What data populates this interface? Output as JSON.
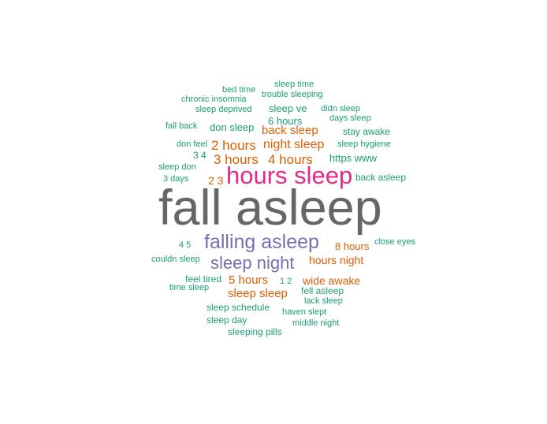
{
  "colors": {
    "teal": "#1b9e77",
    "orange": "#d95f02",
    "purple": "#7570b3",
    "pink": "#e7298a",
    "gray": "#666666"
  },
  "words": [
    {
      "text": "fall asleep",
      "color": "gray"
    },
    {
      "text": "hours sleep",
      "color": "pink"
    },
    {
      "text": "falling asleep",
      "color": "purple"
    },
    {
      "text": "sleep night",
      "color": "purple"
    },
    {
      "text": "2 hours",
      "color": "orange"
    },
    {
      "text": "night sleep",
      "color": "orange"
    },
    {
      "text": "3 hours",
      "color": "orange"
    },
    {
      "text": "4 hours",
      "color": "orange"
    },
    {
      "text": "back sleep",
      "color": "orange"
    },
    {
      "text": "5 hours",
      "color": "orange"
    },
    {
      "text": "sleep sleep",
      "color": "orange"
    },
    {
      "text": "hours night",
      "color": "orange"
    },
    {
      "text": "wide awake",
      "color": "orange"
    },
    {
      "text": "8 hours",
      "color": "orange"
    },
    {
      "text": "2 3",
      "color": "orange"
    },
    {
      "text": "6 hours",
      "color": "teal"
    },
    {
      "text": "https www",
      "color": "teal"
    },
    {
      "text": "sleep ve",
      "color": "teal"
    },
    {
      "text": "don sleep",
      "color": "teal"
    },
    {
      "text": "sleep time",
      "color": "teal"
    },
    {
      "text": "bed time",
      "color": "teal"
    },
    {
      "text": "trouble sleeping",
      "color": "teal"
    },
    {
      "text": "chronic insomnia",
      "color": "teal"
    },
    {
      "text": "sleep deprived",
      "color": "teal"
    },
    {
      "text": "didn sleep",
      "color": "teal"
    },
    {
      "text": "days sleep",
      "color": "teal"
    },
    {
      "text": "fall back",
      "color": "teal"
    },
    {
      "text": "stay awake",
      "color": "teal"
    },
    {
      "text": "don feel",
      "color": "teal"
    },
    {
      "text": "sleep hygiene",
      "color": "teal"
    },
    {
      "text": "3 4",
      "color": "teal"
    },
    {
      "text": "sleep don",
      "color": "teal"
    },
    {
      "text": "back asleep",
      "color": "teal"
    },
    {
      "text": "3 days",
      "color": "teal"
    },
    {
      "text": "4 5",
      "color": "teal"
    },
    {
      "text": "close eyes",
      "color": "teal"
    },
    {
      "text": "couldn sleep",
      "color": "teal"
    },
    {
      "text": "feel tired",
      "color": "teal"
    },
    {
      "text": "1 2",
      "color": "teal"
    },
    {
      "text": "time sleep",
      "color": "teal"
    },
    {
      "text": "fell asleep",
      "color": "teal"
    },
    {
      "text": "lack sleep",
      "color": "teal"
    },
    {
      "text": "sleep schedule",
      "color": "teal"
    },
    {
      "text": "haven slept",
      "color": "teal"
    },
    {
      "text": "sleep day",
      "color": "teal"
    },
    {
      "text": "middle night",
      "color": "teal"
    },
    {
      "text": "sleeping pills",
      "color": "teal"
    }
  ]
}
